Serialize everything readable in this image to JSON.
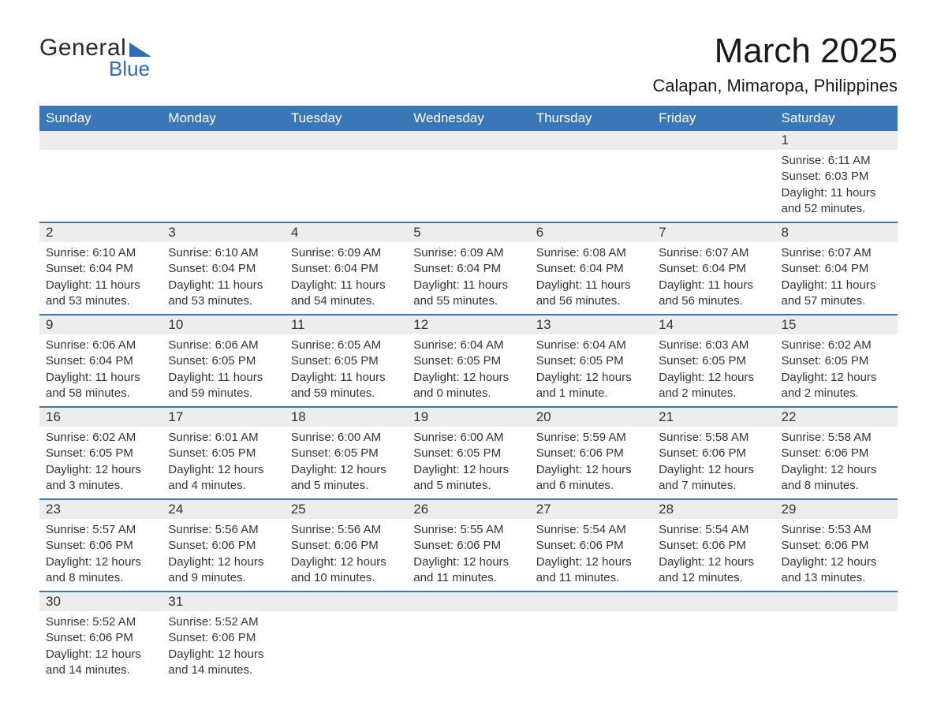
{
  "logo": {
    "word1": "General",
    "word2": "Blue"
  },
  "title": "March 2025",
  "location": "Calapan, Mimaropa, Philippines",
  "header_bg": "#3a77b7",
  "header_fg": "#ffffff",
  "daynum_bg": "#ededed",
  "row_border": "#3a77b7",
  "text_color": "#333333",
  "font_family": "Arial, Helvetica, sans-serif",
  "weekdays": [
    "Sunday",
    "Monday",
    "Tuesday",
    "Wednesday",
    "Thursday",
    "Friday",
    "Saturday"
  ],
  "weeks": [
    [
      null,
      null,
      null,
      null,
      null,
      null,
      {
        "n": "1",
        "sunrise": "Sunrise: 6:11 AM",
        "sunset": "Sunset: 6:03 PM",
        "day1": "Daylight: 11 hours",
        "day2": "and 52 minutes."
      }
    ],
    [
      {
        "n": "2",
        "sunrise": "Sunrise: 6:10 AM",
        "sunset": "Sunset: 6:04 PM",
        "day1": "Daylight: 11 hours",
        "day2": "and 53 minutes."
      },
      {
        "n": "3",
        "sunrise": "Sunrise: 6:10 AM",
        "sunset": "Sunset: 6:04 PM",
        "day1": "Daylight: 11 hours",
        "day2": "and 53 minutes."
      },
      {
        "n": "4",
        "sunrise": "Sunrise: 6:09 AM",
        "sunset": "Sunset: 6:04 PM",
        "day1": "Daylight: 11 hours",
        "day2": "and 54 minutes."
      },
      {
        "n": "5",
        "sunrise": "Sunrise: 6:09 AM",
        "sunset": "Sunset: 6:04 PM",
        "day1": "Daylight: 11 hours",
        "day2": "and 55 minutes."
      },
      {
        "n": "6",
        "sunrise": "Sunrise: 6:08 AM",
        "sunset": "Sunset: 6:04 PM",
        "day1": "Daylight: 11 hours",
        "day2": "and 56 minutes."
      },
      {
        "n": "7",
        "sunrise": "Sunrise: 6:07 AM",
        "sunset": "Sunset: 6:04 PM",
        "day1": "Daylight: 11 hours",
        "day2": "and 56 minutes."
      },
      {
        "n": "8",
        "sunrise": "Sunrise: 6:07 AM",
        "sunset": "Sunset: 6:04 PM",
        "day1": "Daylight: 11 hours",
        "day2": "and 57 minutes."
      }
    ],
    [
      {
        "n": "9",
        "sunrise": "Sunrise: 6:06 AM",
        "sunset": "Sunset: 6:04 PM",
        "day1": "Daylight: 11 hours",
        "day2": "and 58 minutes."
      },
      {
        "n": "10",
        "sunrise": "Sunrise: 6:06 AM",
        "sunset": "Sunset: 6:05 PM",
        "day1": "Daylight: 11 hours",
        "day2": "and 59 minutes."
      },
      {
        "n": "11",
        "sunrise": "Sunrise: 6:05 AM",
        "sunset": "Sunset: 6:05 PM",
        "day1": "Daylight: 11 hours",
        "day2": "and 59 minutes."
      },
      {
        "n": "12",
        "sunrise": "Sunrise: 6:04 AM",
        "sunset": "Sunset: 6:05 PM",
        "day1": "Daylight: 12 hours",
        "day2": "and 0 minutes."
      },
      {
        "n": "13",
        "sunrise": "Sunrise: 6:04 AM",
        "sunset": "Sunset: 6:05 PM",
        "day1": "Daylight: 12 hours",
        "day2": "and 1 minute."
      },
      {
        "n": "14",
        "sunrise": "Sunrise: 6:03 AM",
        "sunset": "Sunset: 6:05 PM",
        "day1": "Daylight: 12 hours",
        "day2": "and 2 minutes."
      },
      {
        "n": "15",
        "sunrise": "Sunrise: 6:02 AM",
        "sunset": "Sunset: 6:05 PM",
        "day1": "Daylight: 12 hours",
        "day2": "and 2 minutes."
      }
    ],
    [
      {
        "n": "16",
        "sunrise": "Sunrise: 6:02 AM",
        "sunset": "Sunset: 6:05 PM",
        "day1": "Daylight: 12 hours",
        "day2": "and 3 minutes."
      },
      {
        "n": "17",
        "sunrise": "Sunrise: 6:01 AM",
        "sunset": "Sunset: 6:05 PM",
        "day1": "Daylight: 12 hours",
        "day2": "and 4 minutes."
      },
      {
        "n": "18",
        "sunrise": "Sunrise: 6:00 AM",
        "sunset": "Sunset: 6:05 PM",
        "day1": "Daylight: 12 hours",
        "day2": "and 5 minutes."
      },
      {
        "n": "19",
        "sunrise": "Sunrise: 6:00 AM",
        "sunset": "Sunset: 6:05 PM",
        "day1": "Daylight: 12 hours",
        "day2": "and 5 minutes."
      },
      {
        "n": "20",
        "sunrise": "Sunrise: 5:59 AM",
        "sunset": "Sunset: 6:06 PM",
        "day1": "Daylight: 12 hours",
        "day2": "and 6 minutes."
      },
      {
        "n": "21",
        "sunrise": "Sunrise: 5:58 AM",
        "sunset": "Sunset: 6:06 PM",
        "day1": "Daylight: 12 hours",
        "day2": "and 7 minutes."
      },
      {
        "n": "22",
        "sunrise": "Sunrise: 5:58 AM",
        "sunset": "Sunset: 6:06 PM",
        "day1": "Daylight: 12 hours",
        "day2": "and 8 minutes."
      }
    ],
    [
      {
        "n": "23",
        "sunrise": "Sunrise: 5:57 AM",
        "sunset": "Sunset: 6:06 PM",
        "day1": "Daylight: 12 hours",
        "day2": "and 8 minutes."
      },
      {
        "n": "24",
        "sunrise": "Sunrise: 5:56 AM",
        "sunset": "Sunset: 6:06 PM",
        "day1": "Daylight: 12 hours",
        "day2": "and 9 minutes."
      },
      {
        "n": "25",
        "sunrise": "Sunrise: 5:56 AM",
        "sunset": "Sunset: 6:06 PM",
        "day1": "Daylight: 12 hours",
        "day2": "and 10 minutes."
      },
      {
        "n": "26",
        "sunrise": "Sunrise: 5:55 AM",
        "sunset": "Sunset: 6:06 PM",
        "day1": "Daylight: 12 hours",
        "day2": "and 11 minutes."
      },
      {
        "n": "27",
        "sunrise": "Sunrise: 5:54 AM",
        "sunset": "Sunset: 6:06 PM",
        "day1": "Daylight: 12 hours",
        "day2": "and 11 minutes."
      },
      {
        "n": "28",
        "sunrise": "Sunrise: 5:54 AM",
        "sunset": "Sunset: 6:06 PM",
        "day1": "Daylight: 12 hours",
        "day2": "and 12 minutes."
      },
      {
        "n": "29",
        "sunrise": "Sunrise: 5:53 AM",
        "sunset": "Sunset: 6:06 PM",
        "day1": "Daylight: 12 hours",
        "day2": "and 13 minutes."
      }
    ],
    [
      {
        "n": "30",
        "sunrise": "Sunrise: 5:52 AM",
        "sunset": "Sunset: 6:06 PM",
        "day1": "Daylight: 12 hours",
        "day2": "and 14 minutes."
      },
      {
        "n": "31",
        "sunrise": "Sunrise: 5:52 AM",
        "sunset": "Sunset: 6:06 PM",
        "day1": "Daylight: 12 hours",
        "day2": "and 14 minutes."
      },
      null,
      null,
      null,
      null,
      null
    ]
  ]
}
